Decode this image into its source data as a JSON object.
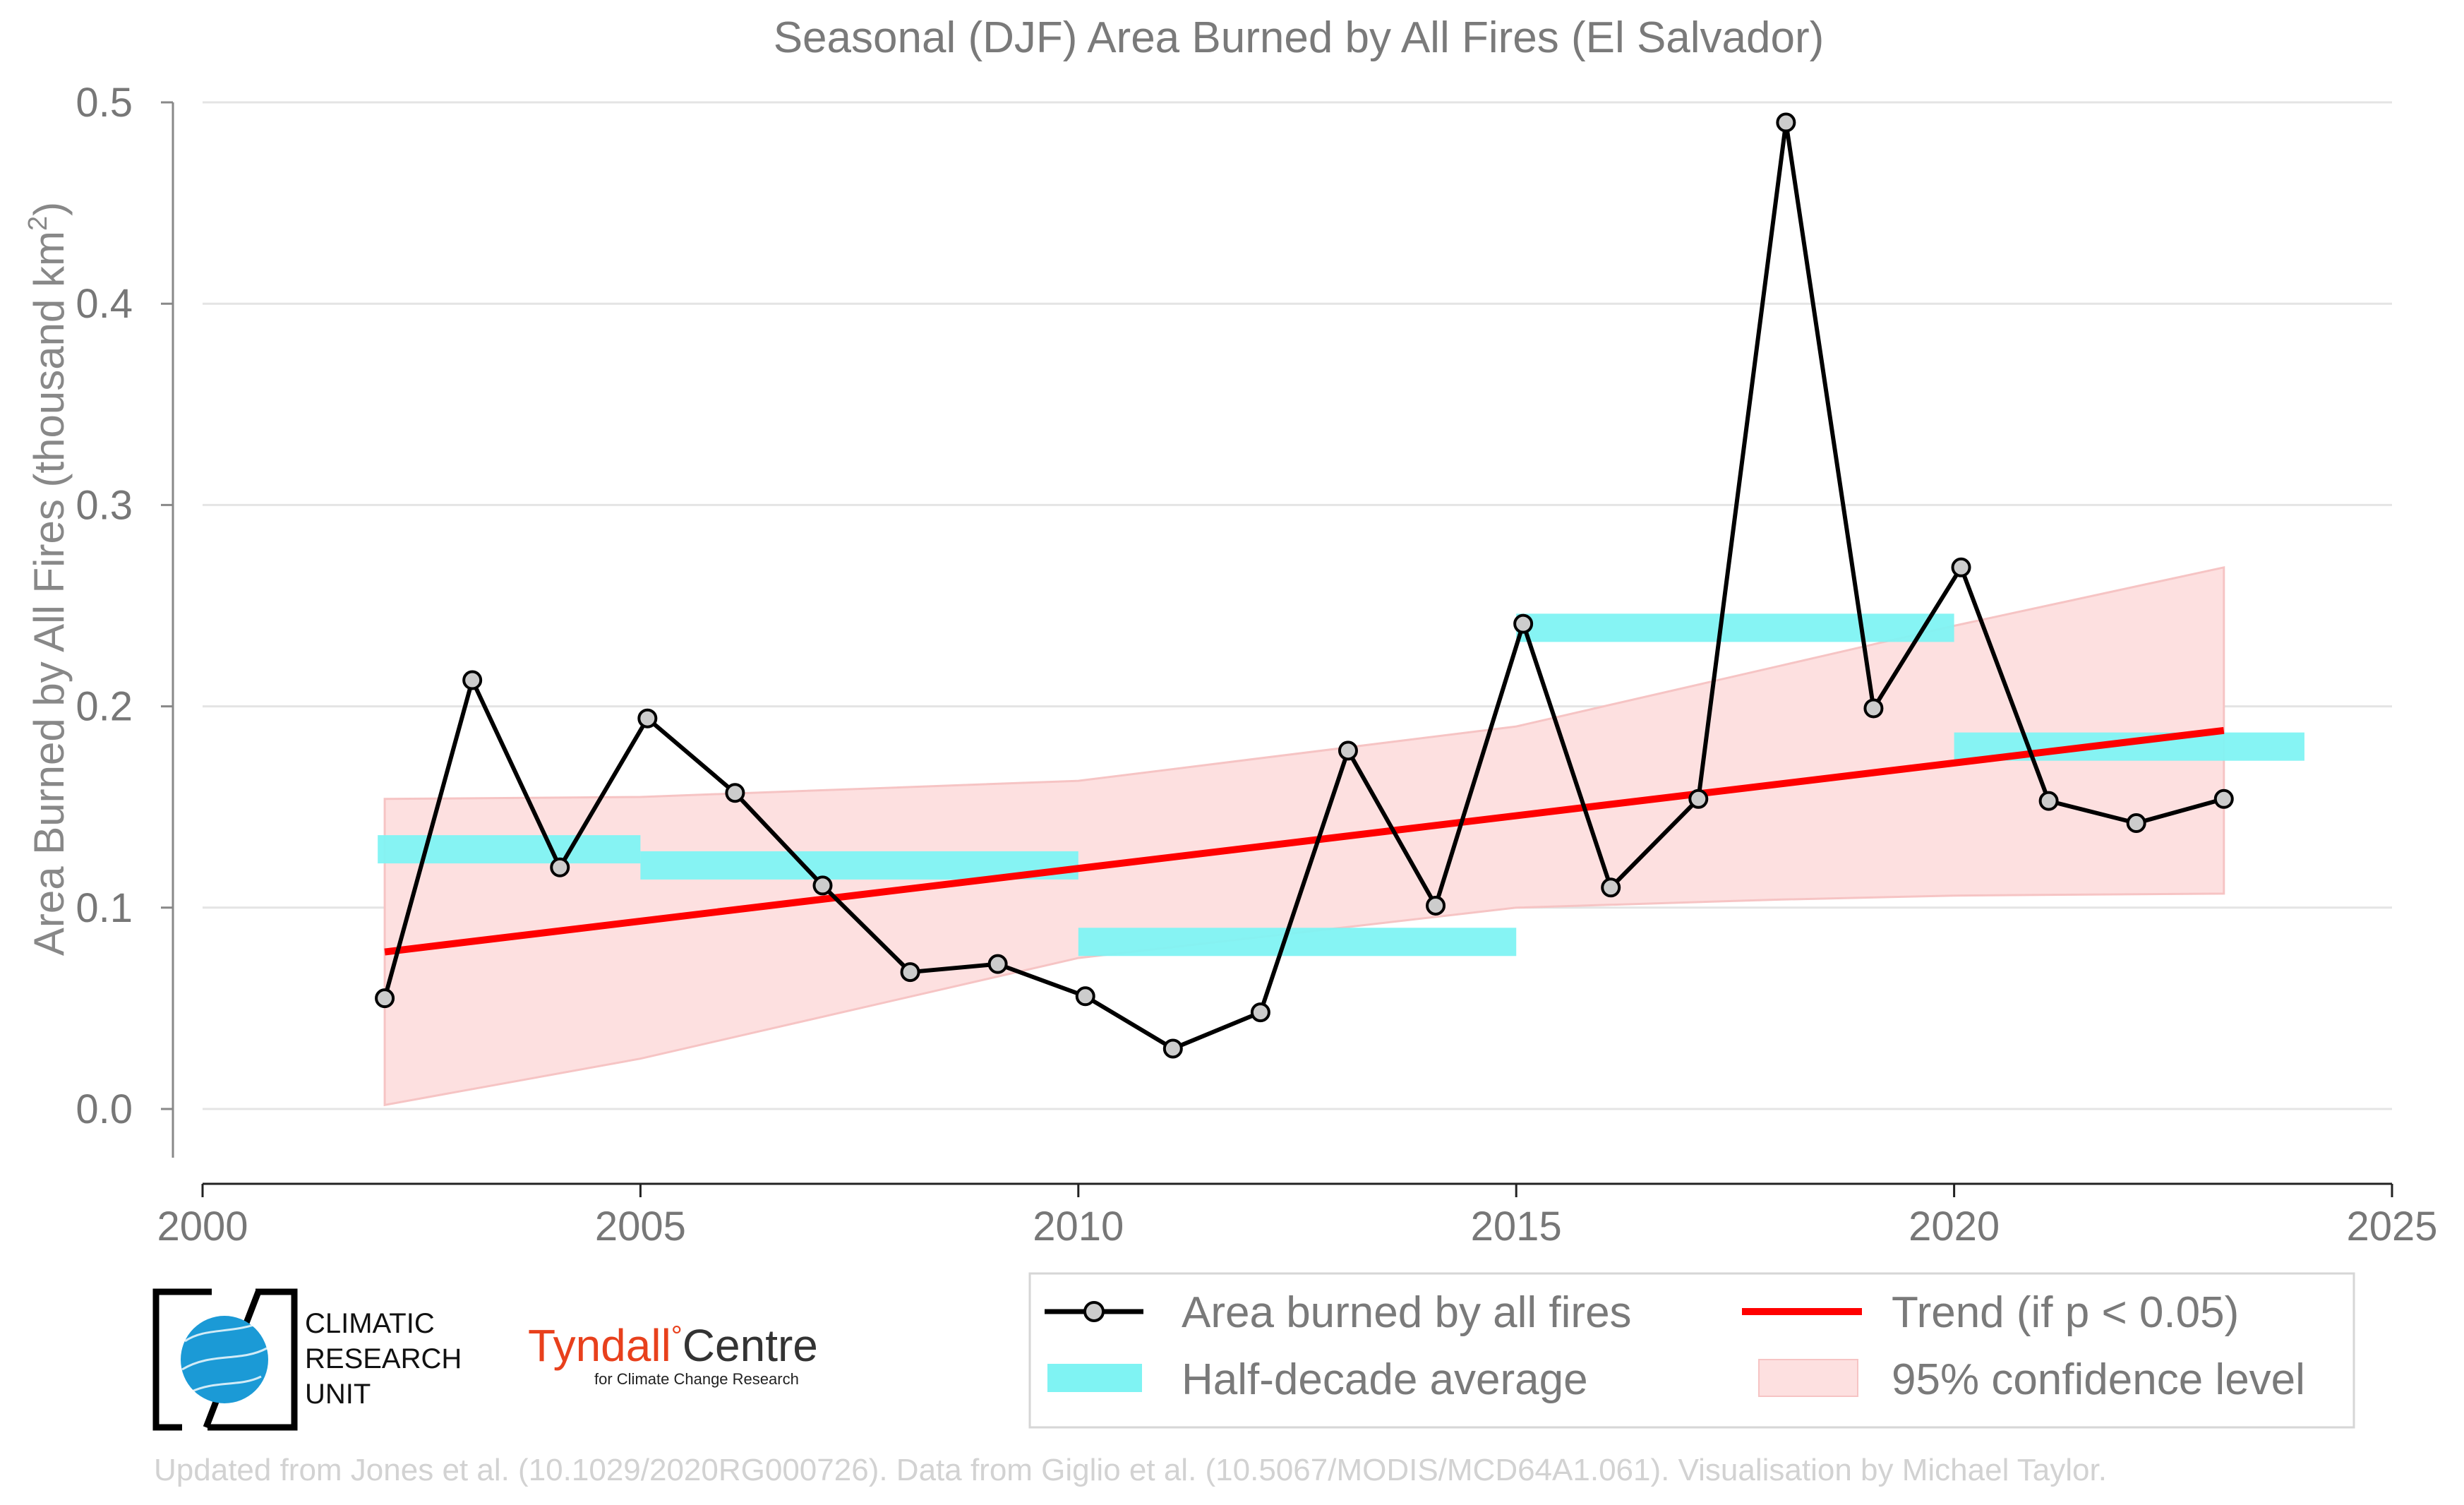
{
  "chart_data": {
    "type": "line",
    "title": "Seasonal (DJF) Area Burned by All Fires (El Salvador)",
    "ylabel": "Area Burned by All Fires (thousand km",
    "ylabel_sup": "2",
    "ylabel_close": ")",
    "xlim": [
      2000,
      2025
    ],
    "ylim": [
      0.0,
      0.5
    ],
    "x_ticks": [
      2000,
      2005,
      2010,
      2015,
      2020,
      2025
    ],
    "x_tick_labels": [
      "2000",
      "2005",
      "2010",
      "2015",
      "2020",
      "2025"
    ],
    "y_ticks": [
      0.0,
      0.1,
      0.2,
      0.3,
      0.4,
      0.5
    ],
    "y_tick_labels": [
      "0.0",
      "0.1",
      "0.2",
      "0.3",
      "0.4",
      "0.5"
    ],
    "grid": true,
    "legend_position": "bottom-right",
    "series": [
      {
        "name": "Area burned by all fires",
        "color": "#000000",
        "marker_fill": "#cccccc",
        "x": [
          2002.08,
          2003.08,
          2004.08,
          2005.08,
          2006.08,
          2007.08,
          2008.08,
          2009.08,
          2010.08,
          2011.08,
          2012.08,
          2013.08,
          2014.08,
          2015.08,
          2016.08,
          2017.08,
          2018.08,
          2019.08,
          2020.08,
          2021.08,
          2022.08,
          2023.08
        ],
        "y": [
          0.055,
          0.213,
          0.12,
          0.194,
          0.157,
          0.111,
          0.068,
          0.072,
          0.056,
          0.03,
          0.048,
          0.178,
          0.101,
          0.241,
          0.11,
          0.154,
          0.49,
          0.199,
          0.269,
          0.153,
          0.142,
          0.154
        ]
      }
    ],
    "half_decade_average": {
      "name": "Half-decade average",
      "color": "#7ff3f3",
      "segments": [
        {
          "x_start": 2002.0,
          "x_end": 2005.0,
          "value": 0.129
        },
        {
          "x_start": 2005.0,
          "x_end": 2010.0,
          "value": 0.121
        },
        {
          "x_start": 2010.0,
          "x_end": 2015.0,
          "value": 0.083
        },
        {
          "x_start": 2015.0,
          "x_end": 2020.0,
          "value": 0.239
        },
        {
          "x_start": 2020.0,
          "x_end": 2024.0,
          "value": 0.18
        }
      ]
    },
    "trend": {
      "name": "Trend (if p < 0.05)",
      "color": "#ff0000",
      "x": [
        2002.08,
        2023.08
      ],
      "y": [
        0.078,
        0.188
      ]
    },
    "confidence_band": {
      "name": "95% confidence level",
      "color": "#fde0e0",
      "edge_color": "#f6c4c4",
      "x": [
        2002.08,
        2005,
        2010,
        2015,
        2018,
        2020,
        2023.08
      ],
      "upper": [
        0.154,
        0.155,
        0.163,
        0.19,
        0.22,
        0.24,
        0.269
      ],
      "lower": [
        0.002,
        0.025,
        0.075,
        0.1,
        0.104,
        0.106,
        0.107
      ]
    }
  },
  "legend": {
    "items": [
      {
        "label": "Area burned by all fires"
      },
      {
        "label": "Trend (if p < 0.05)"
      },
      {
        "label": "Half-decade average"
      },
      {
        "label": "95% confidence level"
      }
    ]
  },
  "logos": {
    "cru_line1": "CLIMATIC",
    "cru_line2": "RESEARCH",
    "cru_line3": "UNIT",
    "tyndall_main": "Tyndall",
    "tyndall_degree": "°",
    "tyndall_centre": "Centre",
    "tyndall_sub": "for Climate Change Research",
    "tyndall_color": "#e8401c",
    "cru_globe_color": "#1b9ad6"
  },
  "credit": "Updated from Jones et al. (10.1029/2020RG000726). Data from Giglio et al. (10.5067/MODIS/MCD64A1.061). Visualisation by Michael Taylor."
}
